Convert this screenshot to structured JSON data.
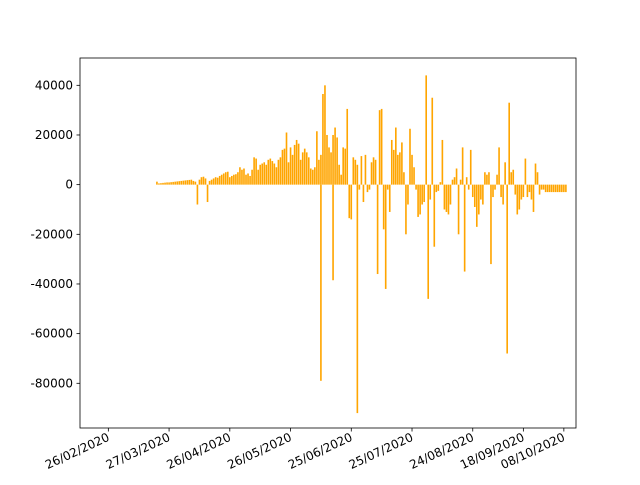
{
  "chart_data": {
    "type": "bar",
    "title": "",
    "xlabel": "",
    "ylabel": "",
    "bar_color": "#ffa500",
    "x_axis": {
      "type": "date",
      "min": "2020-02-12",
      "max": "2020-10-14",
      "tick_label_rotation_deg": 25,
      "ticks": [
        {
          "date": "2020-02-26",
          "label": "26/02/2020"
        },
        {
          "date": "2020-03-27",
          "label": "27/03/2020"
        },
        {
          "date": "2020-04-26",
          "label": "26/04/2020"
        },
        {
          "date": "2020-05-26",
          "label": "26/05/2020"
        },
        {
          "date": "2020-06-25",
          "label": "25/06/2020"
        },
        {
          "date": "2020-07-25",
          "label": "25/07/2020"
        },
        {
          "date": "2020-08-24",
          "label": "24/08/2020"
        },
        {
          "date": "2020-09-18",
          "label": "18/09/2020"
        },
        {
          "date": "2020-10-08",
          "label": "08/10/2020"
        }
      ]
    },
    "y_axis": {
      "min": -98000,
      "max": 51000,
      "ticks": [
        {
          "value": 40000,
          "label": "40000"
        },
        {
          "value": 20000,
          "label": "20000"
        },
        {
          "value": 0,
          "label": "0"
        },
        {
          "value": -20000,
          "label": "-20000"
        },
        {
          "value": -40000,
          "label": "-40000"
        },
        {
          "value": -60000,
          "label": "-60000"
        },
        {
          "value": -80000,
          "label": "-80000"
        }
      ]
    },
    "grid": false,
    "legend": "none",
    "series": [
      {
        "dates": [
          "2020-03-21",
          "2020-03-22",
          "2020-03-23",
          "2020-03-24",
          "2020-03-25",
          "2020-03-26",
          "2020-03-27",
          "2020-03-28",
          "2020-03-29",
          "2020-03-30",
          "2020-03-31",
          "2020-04-01",
          "2020-04-02",
          "2020-04-03",
          "2020-04-04",
          "2020-04-05",
          "2020-04-06",
          "2020-04-07",
          "2020-04-08",
          "2020-04-09",
          "2020-04-10",
          "2020-04-11",
          "2020-04-12",
          "2020-04-13",
          "2020-04-14",
          "2020-04-15",
          "2020-04-16",
          "2020-04-17",
          "2020-04-18",
          "2020-04-19",
          "2020-04-20",
          "2020-04-21",
          "2020-04-22",
          "2020-04-23",
          "2020-04-24",
          "2020-04-25",
          "2020-04-26",
          "2020-04-27",
          "2020-04-28",
          "2020-04-29",
          "2020-04-30",
          "2020-05-01",
          "2020-05-02",
          "2020-05-03",
          "2020-05-04",
          "2020-05-05",
          "2020-05-06",
          "2020-05-07",
          "2020-05-08",
          "2020-05-09",
          "2020-05-10",
          "2020-05-11",
          "2020-05-12",
          "2020-05-13",
          "2020-05-14",
          "2020-05-15",
          "2020-05-16",
          "2020-05-17",
          "2020-05-18",
          "2020-05-19",
          "2020-05-20",
          "2020-05-21",
          "2020-05-22",
          "2020-05-23",
          "2020-05-24",
          "2020-05-25",
          "2020-05-26",
          "2020-05-27",
          "2020-05-28",
          "2020-05-29",
          "2020-05-30",
          "2020-05-31",
          "2020-06-01",
          "2020-06-02",
          "2020-06-03",
          "2020-06-04",
          "2020-06-05",
          "2020-06-06",
          "2020-06-07",
          "2020-06-08",
          "2020-06-09",
          "2020-06-10",
          "2020-06-11",
          "2020-06-12",
          "2020-06-13",
          "2020-06-14",
          "2020-06-15",
          "2020-06-16",
          "2020-06-17",
          "2020-06-18",
          "2020-06-19",
          "2020-06-20",
          "2020-06-21",
          "2020-06-22",
          "2020-06-23",
          "2020-06-24",
          "2020-06-25",
          "2020-06-26",
          "2020-06-27",
          "2020-06-28",
          "2020-06-29",
          "2020-06-30",
          "2020-07-01",
          "2020-07-02",
          "2020-07-03",
          "2020-07-04",
          "2020-07-05",
          "2020-07-06",
          "2020-07-07",
          "2020-07-08",
          "2020-07-09",
          "2020-07-10",
          "2020-07-11",
          "2020-07-12",
          "2020-07-13",
          "2020-07-14",
          "2020-07-15",
          "2020-07-16",
          "2020-07-17",
          "2020-07-18",
          "2020-07-19",
          "2020-07-20",
          "2020-07-21",
          "2020-07-22",
          "2020-07-23",
          "2020-07-24",
          "2020-07-25",
          "2020-07-26",
          "2020-07-27",
          "2020-07-28",
          "2020-07-29",
          "2020-07-30",
          "2020-07-31",
          "2020-08-01",
          "2020-08-02",
          "2020-08-03",
          "2020-08-04",
          "2020-08-05",
          "2020-08-06",
          "2020-08-07",
          "2020-08-08",
          "2020-08-09",
          "2020-08-10",
          "2020-08-11",
          "2020-08-12",
          "2020-08-13",
          "2020-08-14",
          "2020-08-15",
          "2020-08-16",
          "2020-08-17",
          "2020-08-18",
          "2020-08-19",
          "2020-08-20",
          "2020-08-21",
          "2020-08-22",
          "2020-08-23",
          "2020-08-24",
          "2020-08-25",
          "2020-08-26",
          "2020-08-27",
          "2020-08-28",
          "2020-08-29",
          "2020-08-30",
          "2020-08-31",
          "2020-09-01",
          "2020-09-02",
          "2020-09-03",
          "2020-09-04",
          "2020-09-05",
          "2020-09-06",
          "2020-09-07",
          "2020-09-08",
          "2020-09-09",
          "2020-09-10",
          "2020-09-11",
          "2020-09-12",
          "2020-09-13",
          "2020-09-14",
          "2020-09-15",
          "2020-09-16",
          "2020-09-17",
          "2020-09-18",
          "2020-09-19",
          "2020-09-20",
          "2020-09-21",
          "2020-09-22",
          "2020-09-23",
          "2020-09-24",
          "2020-09-25",
          "2020-09-26",
          "2020-09-27",
          "2020-09-28",
          "2020-09-29",
          "2020-09-30",
          "2020-10-01",
          "2020-10-02",
          "2020-10-03",
          "2020-10-04",
          "2020-10-05",
          "2020-10-06",
          "2020-10-07",
          "2020-10-08",
          "2020-10-09"
        ],
        "values": [
          1200,
          500,
          600,
          700,
          800,
          900,
          900,
          1000,
          1100,
          1200,
          1300,
          1400,
          1500,
          1600,
          1700,
          1800,
          1900,
          2000,
          1500,
          1200,
          -8000,
          2000,
          3000,
          3200,
          2500,
          -7000,
          1500,
          2000,
          2500,
          3000,
          2800,
          3500,
          4000,
          4500,
          5000,
          5200,
          3000,
          3500,
          4000,
          4200,
          5000,
          7000,
          6000,
          6500,
          4000,
          4500,
          3500,
          6000,
          11000,
          10500,
          6000,
          8000,
          8500,
          9000,
          8000,
          10000,
          10500,
          9500,
          8500,
          7000,
          10000,
          11000,
          14000,
          14500,
          21000,
          9000,
          15000,
          12000,
          16000,
          18000,
          16500,
          10000,
          13000,
          14500,
          13000,
          11000,
          6500,
          6000,
          7000,
          21500,
          10000,
          12000,
          36500,
          40000,
          20000,
          15000,
          13000,
          20000,
          23000,
          19000,
          8000,
          4000,
          15000,
          14500,
          30500,
          -13500,
          -14000,
          11000,
          10000,
          8000,
          -2000,
          11500,
          -7000,
          12000,
          -3000,
          -2000,
          9000,
          11000,
          10000,
          -36000,
          30000,
          30500,
          -18000,
          -42000,
          -2000,
          -11000,
          18000,
          14000,
          23000,
          12000,
          13000,
          17000,
          5000,
          -20000,
          -8000,
          22500,
          12000,
          7000,
          -2000,
          -13000,
          -12000,
          -8000,
          -7000,
          44000,
          -46000,
          -6000,
          35000,
          -25000,
          -3000,
          -2500,
          1000,
          18000,
          -10000,
          -11000,
          -12000,
          -8000,
          2000,
          3000,
          6500,
          -20000,
          2000,
          15000,
          -35000,
          3000,
          -2000,
          14000,
          -5000,
          -9000,
          -17000,
          -12000,
          -6000,
          -8000,
          5000,
          4000,
          5000,
          -32000,
          -5000,
          -2000,
          4000,
          15000,
          -5000,
          -8000,
          9000,
          -68000,
          33000,
          5000,
          6000,
          -4000,
          -12000,
          -10000,
          -6000,
          -5000,
          10500,
          -5000,
          -3000,
          -6000,
          -11000,
          8500,
          5000,
          -4000,
          -2000,
          -2000,
          -3000,
          -3000,
          -3000,
          -3000,
          -3000,
          -3000,
          -3000,
          -3000,
          -3000,
          -3000,
          -3000
        ]
      }
    ],
    "extra_bars": [
      {
        "date": "2020-06-10",
        "value": -79000
      },
      {
        "date": "2020-06-28",
        "value": -92000
      },
      {
        "date": "2020-06-16",
        "value": -38500
      }
    ]
  }
}
